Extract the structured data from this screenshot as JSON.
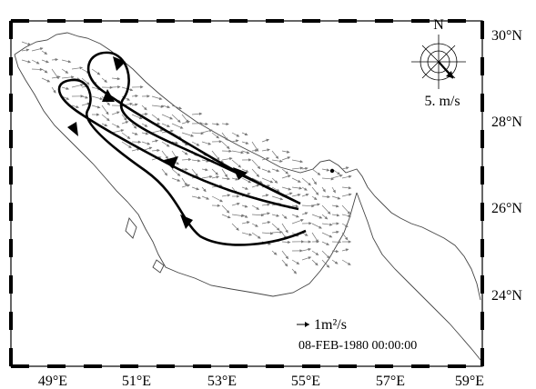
{
  "figure": {
    "longitude_ticks": [
      "49°E",
      "51°E",
      "53°E",
      "55°E",
      "57°E",
      "59°E"
    ],
    "latitude_ticks": [
      "30°N",
      "28°N",
      "26°N",
      "24°N"
    ],
    "compass": {
      "label": "N",
      "wind_speed_label": "5. m/s",
      "wind_direction": "SE"
    },
    "legend": {
      "vector_label": "1m²/s"
    },
    "timestamp": "08-FEB-1980 00:00:00"
  },
  "colors": {
    "frame": "#000000",
    "coast": "#444444",
    "arrows": "#777777",
    "circulation": "#000000"
  }
}
